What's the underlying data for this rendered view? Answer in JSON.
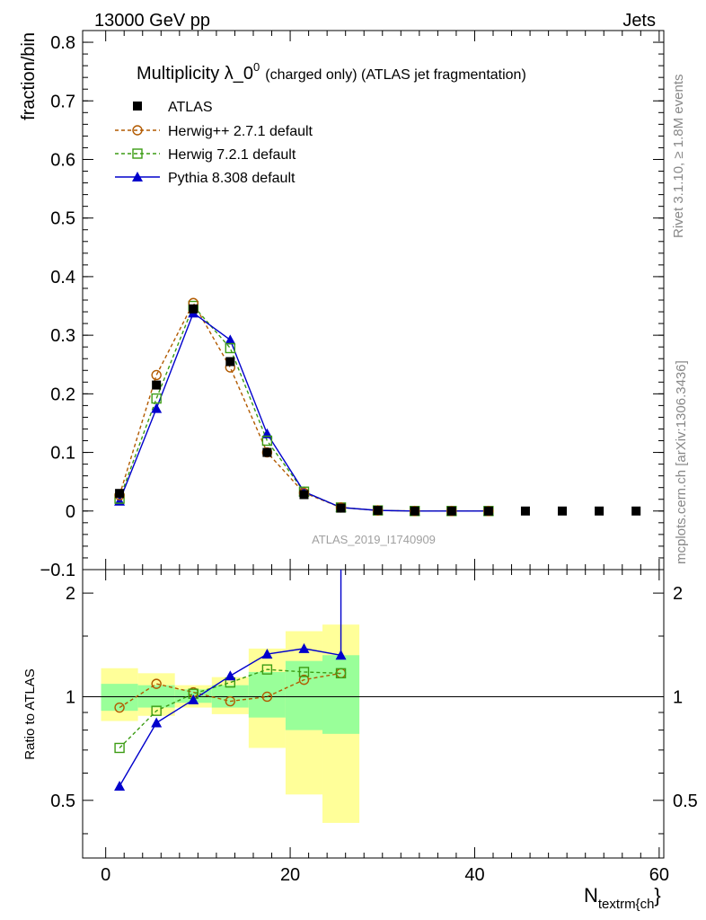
{
  "header": {
    "left": "13000 GeV pp",
    "right": "Jets"
  },
  "title": {
    "main": "Multiplicity λ_0",
    "superscript": "0",
    "suffix": "(charged only) (ATLAS jet fragmentation)"
  },
  "side_text": {
    "rivet": "Rivet 3.1.10, ≥ 1.8M events",
    "mcplots": "mcplots.cern.ch [arXiv:1306.3436]"
  },
  "watermark": "ATLAS_2019_I1740909",
  "colors": {
    "atlas": "#000000",
    "herwigpp": "#b25a00",
    "herwig7": "#3c9c14",
    "pythia": "#0000cc",
    "band_inner": "#99ff99",
    "band_outer": "#ffff99"
  },
  "chart_data": [
    {
      "type": "scatter",
      "panel": "main",
      "ylabel": "fraction/bin",
      "xlim": [
        -2.5,
        60.5
      ],
      "ylim": [
        -0.1,
        0.82
      ],
      "yticks": [
        -0.1,
        0,
        0.1,
        0.2,
        0.3,
        0.4,
        0.5,
        0.6,
        0.7,
        0.8
      ],
      "ytick_labels": [
        "−0.1",
        "0",
        "0.1",
        "0.2",
        "0.3",
        "0.4",
        "0.5",
        "0.6",
        "0.7",
        "0.8"
      ],
      "legend_position": "top-left",
      "series": [
        {
          "name": "ATLAS",
          "key": "atlas",
          "marker": "square-filled",
          "line": "none",
          "x": [
            1.5,
            5.5,
            9.5,
            13.5,
            17.5,
            21.5,
            25.5,
            29.5,
            33.5,
            37.5,
            41.5,
            45.5,
            49.5,
            53.5,
            57.5
          ],
          "y": [
            0.03,
            0.215,
            0.345,
            0.255,
            0.1,
            0.028,
            0.005,
            0.001,
            0,
            0,
            0,
            0,
            0,
            0,
            0
          ]
        },
        {
          "name": "Herwig++ 2.7.1 default",
          "key": "herwigpp",
          "marker": "circle-open",
          "line": "dashed",
          "x": [
            1.5,
            5.5,
            9.5,
            13.5,
            17.5,
            21.5,
            25.5,
            29.5,
            33.5,
            37.5,
            41.5
          ],
          "y": [
            0.027,
            0.232,
            0.355,
            0.245,
            0.1,
            0.031,
            0.006,
            0.001,
            0,
            0,
            0
          ]
        },
        {
          "name": "Herwig 7.2.1 default",
          "key": "herwig7",
          "marker": "square-open",
          "line": "dashed",
          "x": [
            1.5,
            5.5,
            9.5,
            13.5,
            17.5,
            21.5,
            25.5,
            29.5,
            33.5,
            37.5,
            41.5
          ],
          "y": [
            0.021,
            0.192,
            0.35,
            0.278,
            0.12,
            0.033,
            0.006,
            0.001,
            0,
            0,
            0
          ]
        },
        {
          "name": "Pythia 8.308 default",
          "key": "pythia",
          "marker": "triangle-filled",
          "line": "solid",
          "x": [
            1.5,
            5.5,
            9.5,
            13.5,
            17.5,
            21.5,
            25.5,
            29.5,
            33.5,
            37.5,
            41.5
          ],
          "y": [
            0.017,
            0.175,
            0.338,
            0.292,
            0.132,
            0.033,
            0.006,
            0.001,
            0,
            0,
            0
          ]
        }
      ]
    },
    {
      "type": "line",
      "panel": "ratio",
      "ylabel": "Ratio to ATLAS",
      "xlabel": "N",
      "xlabel_sub": "textrm{ch",
      "xlabel_tail": "}",
      "xlim": [
        -2.5,
        60.5
      ],
      "ylim": [
        0.34,
        2.34
      ],
      "log_y": true,
      "xticks": [
        0,
        20,
        40,
        60
      ],
      "xtick_labels": [
        "0",
        "20",
        "40",
        "60"
      ],
      "yticks": [
        0.5,
        1,
        2
      ],
      "ytick_labels": [
        "0.5",
        "1",
        "2"
      ],
      "bands": {
        "x_edges": [
          -0.5,
          3.5,
          7.5,
          11.5,
          15.5,
          19.5,
          23.5,
          27.5
        ],
        "inner_low": [
          0.91,
          0.93,
          0.96,
          0.93,
          0.87,
          0.8,
          0.78
        ],
        "inner_high": [
          1.09,
          1.08,
          1.05,
          1.08,
          1.18,
          1.27,
          1.32
        ],
        "outer_low": [
          0.85,
          0.88,
          0.93,
          0.89,
          0.71,
          0.52,
          0.43
        ],
        "outer_high": [
          1.21,
          1.17,
          1.08,
          1.14,
          1.38,
          1.55,
          1.62
        ]
      },
      "series": [
        {
          "name": "Herwig++ 2.7.1 default",
          "key": "herwigpp",
          "marker": "circle-open",
          "line": "dashed",
          "x": [
            1.5,
            5.5,
            9.5,
            13.5,
            17.5,
            21.5,
            25.5
          ],
          "y": [
            0.93,
            1.09,
            1.03,
            0.97,
            1.0,
            1.12,
            1.17
          ]
        },
        {
          "name": "Herwig 7.2.1 default",
          "key": "herwig7",
          "marker": "square-open",
          "line": "dashed",
          "x": [
            1.5,
            5.5,
            9.5,
            13.5,
            17.5,
            21.5,
            25.5
          ],
          "y": [
            0.71,
            0.91,
            1.02,
            1.1,
            1.2,
            1.18,
            1.17
          ]
        },
        {
          "name": "Pythia 8.308 default",
          "key": "pythia",
          "marker": "triangle-filled",
          "line": "solid",
          "x": [
            1.5,
            5.5,
            9.5,
            13.5,
            17.5,
            21.5,
            25.5
          ],
          "y": [
            0.55,
            0.84,
            0.98,
            1.15,
            1.33,
            1.38,
            1.32
          ]
        }
      ]
    }
  ]
}
